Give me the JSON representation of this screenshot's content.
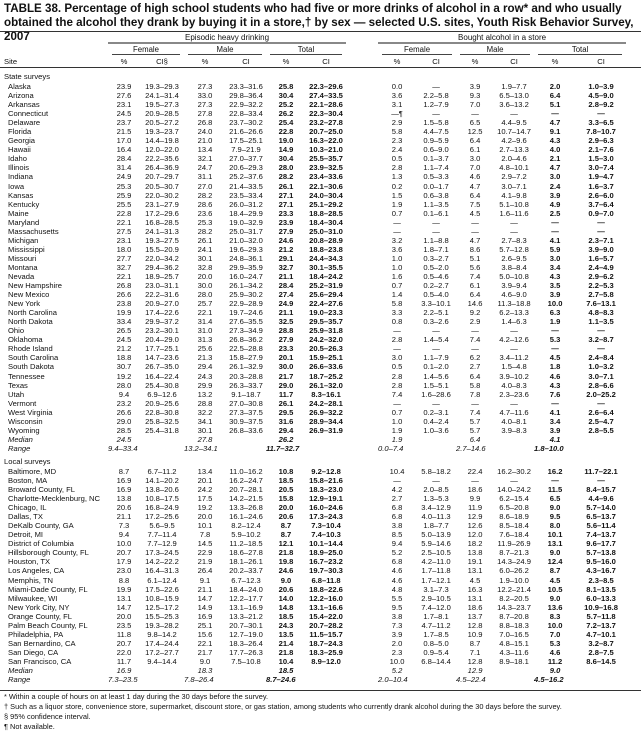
{
  "title": "TABLE 38. Percentage of high school students who had five or more drinks of alcohol in a row* and who usually obtained the alcohol they drank by buying it in a store,† by sex — selected U.S. sites, Youth Risk Behavior Survey, 2007",
  "header": {
    "group1": "Episodic heavy drinking",
    "group2": "Bought alcohol in a store",
    "female": "Female",
    "male": "Male",
    "total": "Total",
    "site": "Site",
    "pct": "%",
    "ci": "CI",
    "ci_first": "CI§"
  },
  "sections": [
    {
      "label": "State surveys",
      "rows": [
        [
          "Alaska",
          "23.9",
          "19.3–29.3",
          "27.3",
          "23.3–31.6",
          "25.8",
          "22.3–29.6",
          "0.0",
          "—",
          "3.9",
          "1.9–7.7",
          "2.0",
          "1.0–3.9"
        ],
        [
          "Arizona",
          "27.6",
          "24.1–31.4",
          "33.0",
          "29.8–36.4",
          "30.4",
          "27.4–33.5",
          "3.6",
          "2.2–5.8",
          "9.3",
          "6.5–13.0",
          "6.4",
          "4.5–9.0"
        ],
        [
          "Arkansas",
          "23.1",
          "19.5–27.3",
          "27.3",
          "22.9–32.2",
          "25.2",
          "22.1–28.6",
          "3.1",
          "1.2–7.9",
          "7.0",
          "3.6–13.2",
          "5.1",
          "2.8–9.2"
        ],
        [
          "Connecticut",
          "24.5",
          "20.9–28.5",
          "27.8",
          "22.8–33.4",
          "26.2",
          "22.3–30.4",
          "—¶",
          "—",
          "—",
          "—",
          "—",
          "—"
        ],
        [
          "Delaware",
          "23.7",
          "20.5–27.2",
          "26.8",
          "23.7–30.2",
          "25.4",
          "23.2–27.8",
          "2.9",
          "1.5–5.8",
          "6.5",
          "4.4–9.5",
          "4.7",
          "3.3–6.5"
        ],
        [
          "Florida",
          "21.5",
          "19.3–23.7",
          "24.0",
          "21.6–26.6",
          "22.8",
          "20.7–25.0",
          "5.8",
          "4.4–7.5",
          "12.5",
          "10.7–14.7",
          "9.1",
          "7.8–10.7"
        ],
        [
          "Georgia",
          "17.0",
          "14.4–19.8",
          "21.0",
          "17.5–25.1",
          "19.0",
          "16.3–22.0",
          "2.3",
          "0.9–5.9",
          "6.4",
          "4.2–9.6",
          "4.3",
          "2.9–6.3"
        ],
        [
          "Hawaii",
          "16.4",
          "12.0–22.0",
          "13.4",
          "7.9–21.9",
          "14.9",
          "10.3–21.0",
          "2.4",
          "0.6–9.0",
          "6.1",
          "2.7–13.3",
          "4.0",
          "2.1–7.6"
        ],
        [
          "Idaho",
          "28.4",
          "22.2–35.6",
          "32.1",
          "27.0–37.7",
          "30.4",
          "25.5–35.7",
          "0.5",
          "0.1–3.7",
          "3.0",
          "2.0–4.6",
          "2.1",
          "1.5–3.0"
        ],
        [
          "Illinois",
          "31.4",
          "26.4–36.9",
          "24.7",
          "20.6–29.3",
          "28.0",
          "23.9–32.5",
          "2.8",
          "1.1–7.4",
          "7.0",
          "4.8–10.1",
          "4.7",
          "3.0–7.4"
        ],
        [
          "Indiana",
          "24.9",
          "20.7–29.7",
          "31.1",
          "25.2–37.6",
          "28.2",
          "23.4–33.6",
          "1.3",
          "0.5–3.3",
          "4.6",
          "2.9–7.2",
          "3.0",
          "1.9–4.7"
        ],
        [
          "Iowa",
          "25.3",
          "20.5–30.7",
          "27.0",
          "21.4–33.5",
          "26.1",
          "22.1–30.6",
          "0.2",
          "0.0–1.7",
          "4.7",
          "3.0–7.1",
          "2.4",
          "1.6–3.7"
        ],
        [
          "Kansas",
          "25.9",
          "22.0–30.2",
          "28.2",
          "23.5–33.4",
          "27.1",
          "24.0–30.4",
          "1.5",
          "0.6–3.8",
          "6.4",
          "4.1–9.8",
          "3.9",
          "2.6–6.0"
        ],
        [
          "Kentucky",
          "25.5",
          "23.1–27.9",
          "28.6",
          "26.0–31.2",
          "27.1",
          "25.1–29.2",
          "1.9",
          "1.1–3.5",
          "7.5",
          "5.1–10.8",
          "4.9",
          "3.7–6.4"
        ],
        [
          "Maine",
          "22.8",
          "17.2–29.6",
          "23.6",
          "18.4–29.9",
          "23.3",
          "18.8–28.5",
          "0.7",
          "0.1–6.1",
          "4.5",
          "1.6–11.6",
          "2.5",
          "0.9–7.0"
        ],
        [
          "Maryland",
          "22.1",
          "16.8–28.5",
          "25.3",
          "19.0–32.9",
          "23.9",
          "18.4–30.4",
          "—",
          "—",
          "—",
          "—",
          "—",
          "—"
        ],
        [
          "Massachusetts",
          "27.5",
          "24.1–31.3",
          "28.2",
          "25.0–31.7",
          "27.9",
          "25.0–31.0",
          "—",
          "—",
          "—",
          "—",
          "—",
          "—"
        ],
        [
          "Michigan",
          "23.1",
          "19.3–27.5",
          "26.1",
          "21.0–32.0",
          "24.6",
          "20.8–28.9",
          "3.2",
          "1.1–8.8",
          "4.7",
          "2.7–8.3",
          "4.1",
          "2.3–7.1"
        ],
        [
          "Mississippi",
          "18.0",
          "15.5–20.9",
          "24.1",
          "19.6–29.3",
          "21.2",
          "18.8–23.8",
          "3.6",
          "1.8–7.1",
          "8.6",
          "5.7–12.8",
          "5.9",
          "3.9–9.0"
        ],
        [
          "Missouri",
          "27.7",
          "22.0–34.2",
          "30.1",
          "24.8–36.1",
          "29.1",
          "24.4–34.3",
          "1.0",
          "0.3–2.7",
          "5.1",
          "2.6–9.5",
          "3.0",
          "1.6–5.7"
        ],
        [
          "Montana",
          "32.7",
          "29.4–36.2",
          "32.8",
          "29.9–35.9",
          "32.7",
          "30.1–35.5",
          "1.0",
          "0.5–2.0",
          "5.6",
          "3.8–8.4",
          "3.4",
          "2.4–4.9"
        ],
        [
          "Nevada",
          "22.1",
          "18.9–25.7",
          "20.0",
          "16.0–24.7",
          "21.1",
          "18.4–24.2",
          "1.6",
          "0.5–4.6",
          "7.4",
          "5.0–10.8",
          "4.3",
          "2.9–6.2"
        ],
        [
          "New Hampshire",
          "26.8",
          "23.0–31.1",
          "30.0",
          "26.1–34.2",
          "28.4",
          "25.2–31.9",
          "0.7",
          "0.2–2.7",
          "6.1",
          "3.9–9.4",
          "3.5",
          "2.2–5.3"
        ],
        [
          "New Mexico",
          "26.6",
          "22.2–31.6",
          "28.0",
          "25.9–30.2",
          "27.4",
          "25.6–29.4",
          "1.4",
          "0.5–4.0",
          "6.4",
          "4.6–9.0",
          "3.9",
          "2.7–5.8"
        ],
        [
          "New York",
          "23.8",
          "20.9–27.0",
          "25.7",
          "22.9–28.9",
          "24.9",
          "22.4–27.6",
          "5.8",
          "3.3–10.1",
          "14.6",
          "11.3–18.8",
          "10.0",
          "7.6–13.1"
        ],
        [
          "North Carolina",
          "19.9",
          "17.4–22.6",
          "22.1",
          "19.7–24.6",
          "21.1",
          "19.0–23.3",
          "3.3",
          "2.2–5.1",
          "9.2",
          "6.2–13.3",
          "6.3",
          "4.8–8.3"
        ],
        [
          "North Dakota",
          "33.4",
          "29.9–37.2",
          "31.4",
          "27.6–35.5",
          "32.5",
          "29.5–35.7",
          "0.8",
          "0.3–2.6",
          "2.9",
          "1.4–6.3",
          "1.9",
          "1.1–3.5"
        ],
        [
          "Ohio",
          "26.5",
          "23.2–30.1",
          "31.0",
          "27.3–34.9",
          "28.8",
          "25.9–31.8",
          "—",
          "—",
          "—",
          "—",
          "—",
          "—"
        ],
        [
          "Oklahoma",
          "24.5",
          "20.4–29.0",
          "31.3",
          "26.8–36.2",
          "27.9",
          "24.2–32.0",
          "2.8",
          "1.4–5.4",
          "7.4",
          "4.2–12.6",
          "5.3",
          "3.2–8.7"
        ],
        [
          "Rhode Island",
          "21.2",
          "17.7–25.1",
          "25.6",
          "22.5–28.8",
          "23.3",
          "20.5–26.3",
          "—",
          "—",
          "—",
          "—",
          "—",
          "—"
        ],
        [
          "South Carolina",
          "18.8",
          "14.7–23.6",
          "21.3",
          "15.8–27.9",
          "20.1",
          "15.9–25.1",
          "3.0",
          "1.1–7.9",
          "6.2",
          "3.4–11.2",
          "4.5",
          "2.4–8.4"
        ],
        [
          "South Dakota",
          "30.7",
          "26.7–35.0",
          "29.4",
          "26.1–32.9",
          "30.0",
          "26.6–33.6",
          "0.5",
          "0.1–2.0",
          "2.7",
          "1.5–4.8",
          "1.8",
          "1.0–3.2"
        ],
        [
          "Tennessee",
          "19.2",
          "16.4–22.4",
          "24.3",
          "20.3–28.8",
          "21.7",
          "18.7–25.2",
          "2.8",
          "1.4–5.6",
          "6.4",
          "3.9–10.2",
          "4.6",
          "3.0–7.1"
        ],
        [
          "Texas",
          "28.0",
          "25.4–30.8",
          "29.9",
          "26.3–33.7",
          "29.0",
          "26.1–32.0",
          "2.8",
          "1.5–5.1",
          "5.8",
          "4.0–8.3",
          "4.3",
          "2.8–6.6"
        ],
        [
          "Utah",
          "9.4",
          "6.9–12.6",
          "13.2",
          "9.1–18.7",
          "11.7",
          "8.3–16.1",
          "7.4",
          "1.6–28.6",
          "7.8",
          "2.3–23.6",
          "7.6",
          "2.0–25.2"
        ],
        [
          "Vermont",
          "23.2",
          "20.9–25.6",
          "28.8",
          "27.0–30.8",
          "26.1",
          "24.2–28.1",
          "—",
          "—",
          "—",
          "—",
          "—",
          "—"
        ],
        [
          "West Virginia",
          "26.6",
          "22.8–30.8",
          "32.2",
          "27.3–37.5",
          "29.5",
          "26.9–32.2",
          "0.7",
          "0.2–3.1",
          "7.4",
          "4.7–11.6",
          "4.1",
          "2.6–6.4"
        ],
        [
          "Wisconsin",
          "29.0",
          "25.8–32.5",
          "34.1",
          "30.9–37.5",
          "31.6",
          "28.9–34.4",
          "1.0",
          "0.4–2.4",
          "5.7",
          "4.0–8.1",
          "3.4",
          "2.5–4.7"
        ],
        [
          "Wyoming",
          "28.5",
          "25.4–31.8",
          "30.1",
          "26.8–33.6",
          "29.4",
          "26.9–31.9",
          "1.9",
          "1.0–3.6",
          "5.7",
          "3.9–8.3",
          "3.9",
          "2.8–5.5"
        ]
      ],
      "median_label": "Median",
      "median": [
        "24.5",
        "27.8",
        "26.2",
        "1.9",
        "6.4",
        "4.1"
      ],
      "range_label": "Range",
      "range": [
        "9.4–33.4",
        "13.2–34.1",
        "11.7–32.7",
        "0.0–7.4",
        "2.7–14.6",
        "1.8–10.0"
      ]
    },
    {
      "label": "Local surveys",
      "rows": [
        [
          "Baltimore, MD",
          "8.7",
          "6.7–11.2",
          "13.4",
          "11.0–16.2",
          "10.8",
          "9.2–12.8",
          "10.4",
          "5.8–18.2",
          "22.4",
          "16.2–30.2",
          "16.2",
          "11.7–22.1"
        ],
        [
          "Boston, MA",
          "16.9",
          "14.1–20.2",
          "20.1",
          "16.2–24.7",
          "18.5",
          "15.8–21.6",
          "—",
          "—",
          "—",
          "—",
          "—",
          "—"
        ],
        [
          "Broward County, FL",
          "16.9",
          "13.8–20.6",
          "24.2",
          "20.7–28.1",
          "20.5",
          "18.3–23.0",
          "4.2",
          "2.0–8.5",
          "18.6",
          "14.0–24.2",
          "11.5",
          "8.4–15.7"
        ],
        [
          "Charlotte-Mecklenburg, NC",
          "13.8",
          "10.8–17.5",
          "17.5",
          "14.2–21.5",
          "15.8",
          "12.9–19.1",
          "2.7",
          "1.3–5.3",
          "9.9",
          "6.2–15.4",
          "6.5",
          "4.4–9.6"
        ],
        [
          "Chicago, IL",
          "20.6",
          "16.8–24.9",
          "19.2",
          "13.3–26.8",
          "20.0",
          "16.0–24.6",
          "6.8",
          "3.4–12.9",
          "11.9",
          "6.5–20.8",
          "9.0",
          "5.7–14.0"
        ],
        [
          "Dallas, TX",
          "21.1",
          "17.2–25.6",
          "20.0",
          "16.1–24.6",
          "20.6",
          "17.3–24.3",
          "6.8",
          "4.0–11.3",
          "12.9",
          "8.6–18.9",
          "9.5",
          "6.5–13.7"
        ],
        [
          "DeKalb County, GA",
          "7.3",
          "5.6–9.5",
          "10.1",
          "8.2–12.4",
          "8.7",
          "7.3–10.4",
          "3.8",
          "1.8–7.7",
          "12.6",
          "8.5–18.4",
          "8.0",
          "5.6–11.4"
        ],
        [
          "Detroit, MI",
          "9.4",
          "7.7–11.4",
          "7.8",
          "5.9–10.2",
          "8.7",
          "7.4–10.3",
          "8.5",
          "5.0–13.9",
          "12.0",
          "7.6–18.4",
          "10.1",
          "7.4–13.7"
        ],
        [
          "District of Columbia",
          "10.0",
          "7.7–12.9",
          "14.5",
          "11.2–18.5",
          "12.1",
          "10.1–14.4",
          "9.4",
          "5.9–14.6",
          "18.2",
          "11.9–26.9",
          "13.1",
          "9.6–17.7"
        ],
        [
          "Hillsborough County, FL",
          "20.7",
          "17.3–24.5",
          "22.9",
          "18.6–27.8",
          "21.8",
          "18.9–25.0",
          "5.2",
          "2.5–10.5",
          "13.8",
          "8.7–21.3",
          "9.0",
          "5.7–13.8"
        ],
        [
          "Houston, TX",
          "17.9",
          "14.2–22.2",
          "21.9",
          "18.1–26.1",
          "19.8",
          "16.7–23.2",
          "6.8",
          "4.2–11.0",
          "19.1",
          "14.3–24.9",
          "12.4",
          "9.5–16.0"
        ],
        [
          "Los Angeles, CA",
          "23.0",
          "16.4–31.3",
          "26.4",
          "20.2–33.7",
          "24.6",
          "19.7–30.3",
          "4.6",
          "1.7–11.8",
          "13.1",
          "6.0–26.2",
          "8.7",
          "4.3–16.7"
        ],
        [
          "Memphis, TN",
          "8.8",
          "6.1–12.4",
          "9.1",
          "6.7–12.3",
          "9.0",
          "6.8–11.8",
          "4.6",
          "1.7–12.1",
          "4.5",
          "1.9–10.0",
          "4.5",
          "2.3–8.5"
        ],
        [
          "Miami-Dade County, FL",
          "19.9",
          "17.5–22.6",
          "21.1",
          "18.4–24.0",
          "20.6",
          "18.8–22.6",
          "4.8",
          "3.1–7.3",
          "16.3",
          "12.2–21.4",
          "10.5",
          "8.1–13.5"
        ],
        [
          "Milwaukee, WI",
          "13.1",
          "10.8–15.9",
          "14.7",
          "12.2–17.7",
          "14.0",
          "12.2–16.0",
          "5.5",
          "2.9–10.5",
          "13.1",
          "8.2–20.5",
          "9.0",
          "6.0–13.3"
        ],
        [
          "New York City, NY",
          "14.7",
          "12.5–17.2",
          "14.9",
          "13.1–16.9",
          "14.8",
          "13.1–16.6",
          "9.5",
          "7.4–12.0",
          "18.6",
          "14.3–23.7",
          "13.6",
          "10.9–16.8"
        ],
        [
          "Orange County, FL",
          "20.0",
          "15.5–25.3",
          "16.9",
          "13.3–21.2",
          "18.5",
          "15.4–22.0",
          "3.8",
          "1.7–8.1",
          "13.7",
          "8.7–20.8",
          "8.3",
          "5.7–11.8"
        ],
        [
          "Palm Beach County, FL",
          "23.5",
          "19.3–28.2",
          "25.1",
          "20.7–30.1",
          "24.3",
          "20.7–28.2",
          "7.3",
          "4.7–11.2",
          "12.8",
          "8.8–18.3",
          "10.0",
          "7.2–13.7"
        ],
        [
          "Philadelphia, PA",
          "11.8",
          "9.8–14.2",
          "15.6",
          "12.7–19.0",
          "13.5",
          "11.5–15.7",
          "3.9",
          "1.7–8.5",
          "10.9",
          "7.0–16.5",
          "7.0",
          "4.7–10.1"
        ],
        [
          "San Bernardino, CA",
          "20.7",
          "17.4–24.4",
          "22.1",
          "18.3–26.4",
          "21.4",
          "18.7–24.3",
          "2.0",
          "0.8–5.0",
          "8.7",
          "4.8–15.1",
          "5.3",
          "3.2–8.7"
        ],
        [
          "San Diego, CA",
          "22.0",
          "17.2–27.7",
          "21.7",
          "17.7–26.3",
          "21.8",
          "18.3–25.9",
          "2.3",
          "0.9–5.4",
          "7.1",
          "4.3–11.6",
          "4.6",
          "2.8–7.5"
        ],
        [
          "San Francisco, CA",
          "11.7",
          "9.4–14.4",
          "9.0",
          "7.5–10.8",
          "10.4",
          "8.9–12.0",
          "10.0",
          "6.8–14.4",
          "12.8",
          "8.9–18.1",
          "11.2",
          "8.6–14.5"
        ]
      ],
      "median_label": "Median",
      "median": [
        "16.9",
        "18.3",
        "18.5",
        "5.2",
        "12.9",
        "9.0"
      ],
      "range_label": "Range",
      "range": [
        "7.3–23.5",
        "7.8–26.4",
        "8.7–24.6",
        "2.0–10.4",
        "4.5–22.4",
        "4.5–16.2"
      ]
    }
  ],
  "footnotes": [
    "* Within a couple of hours on at least 1 day during the 30 days before the survey.",
    "† Such as a liquor store, convenience store, supermarket, discount store, or gas station, among students who currently drank alcohol during the 30 days before the survey.",
    "§ 95% confidence interval.",
    "¶ Not available."
  ]
}
